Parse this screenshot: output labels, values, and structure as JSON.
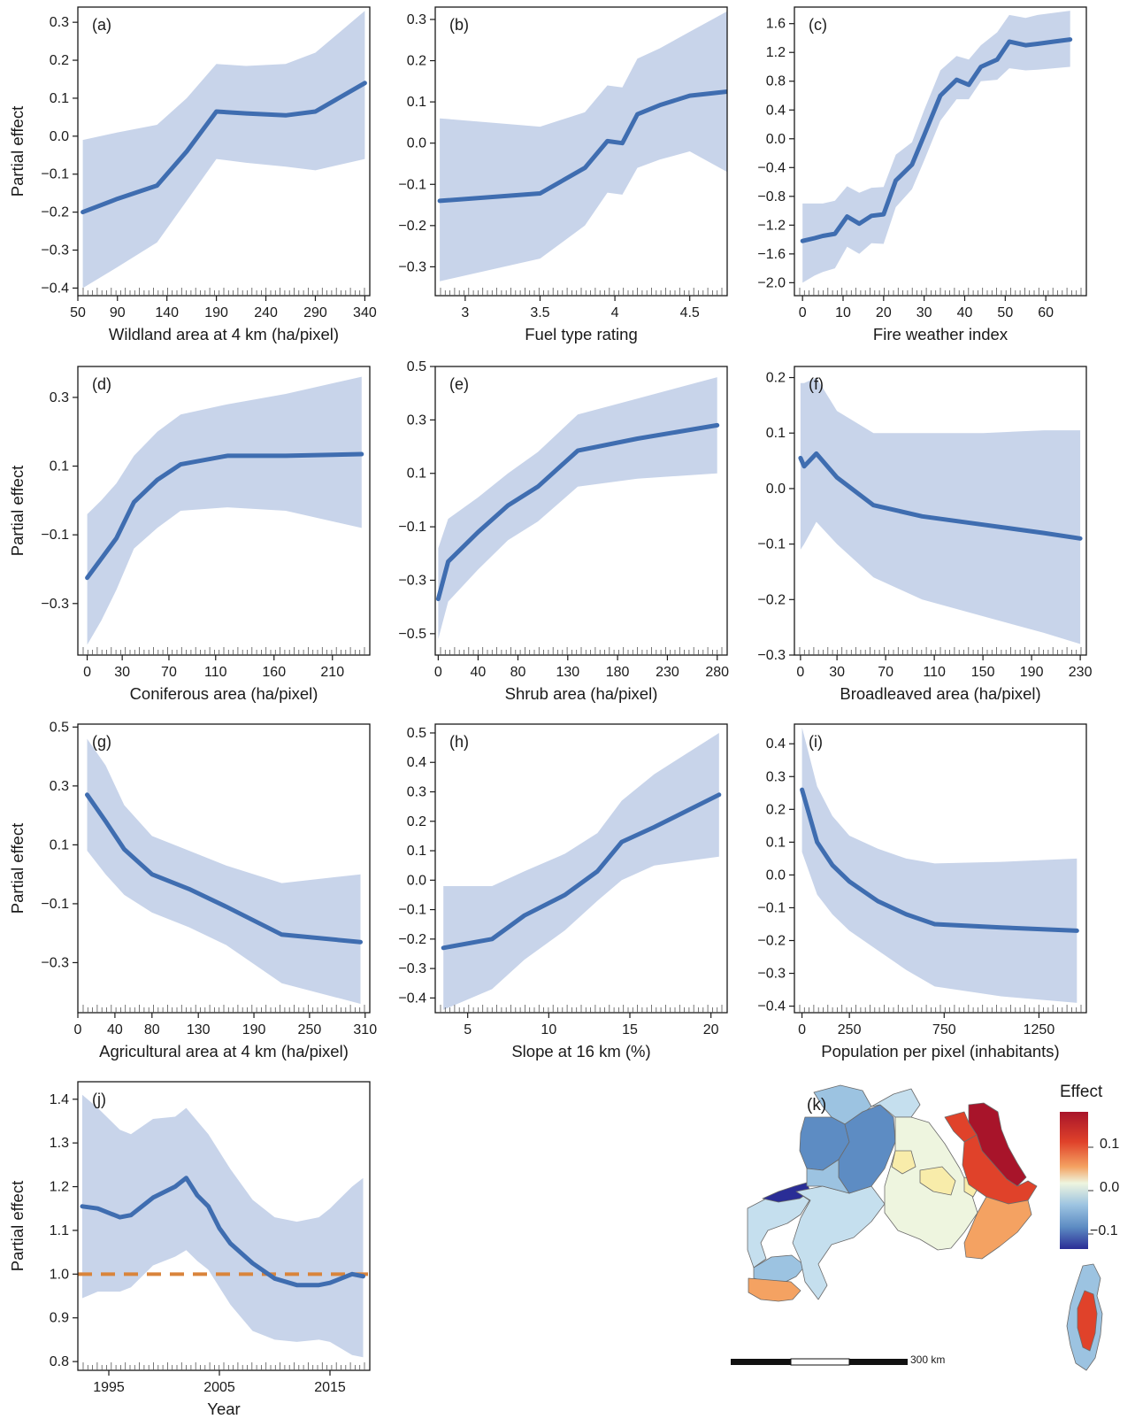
{
  "colors": {
    "band": "#c8d4ea",
    "line": "#3f6db0",
    "reference": "#d9843b",
    "axis": "#1a1a1a"
  },
  "panels": [
    {
      "tag": "(a)",
      "xlabel": "Wildland area at 4 km (ha/pixel)",
      "ylabel": "Partial effect",
      "xlim": [
        50,
        345
      ],
      "ylim": [
        -0.42,
        0.34
      ],
      "xticks": [
        50,
        90,
        140,
        190,
        240,
        290,
        340
      ],
      "xtick_labels": [
        "50",
        "90",
        "140",
        "190",
        "240",
        "290",
        "340"
      ],
      "yticks": [
        -0.4,
        -0.3,
        -0.2,
        -0.1,
        0,
        0.1,
        0.2,
        0.3
      ],
      "ytick_labels": [
        "−0.4",
        "−0.3",
        "−0.2",
        "−0.1",
        "0.0",
        "0.1",
        "0.2",
        "0.3"
      ]
    },
    {
      "tag": "(b)",
      "xlabel": "Fuel type rating",
      "ylabel": "",
      "xlim": [
        2.8,
        4.75
      ],
      "ylim": [
        -0.37,
        0.33
      ],
      "xticks": [
        3,
        3.5,
        4,
        4.5
      ],
      "xtick_labels": [
        "3",
        "3.5",
        "4",
        "4.5"
      ],
      "yticks": [
        -0.3,
        -0.2,
        -0.1,
        0,
        0.1,
        0.2,
        0.3
      ],
      "ytick_labels": [
        "−0.3",
        "−0.2",
        "−0.1",
        "0.0",
        "0.1",
        "0.2",
        "0.3"
      ]
    },
    {
      "tag": "(c)",
      "xlabel": "Fire weather index",
      "ylabel": "",
      "xlim": [
        -2,
        70
      ],
      "ylim": [
        -2.18,
        1.83
      ],
      "xticks": [
        0,
        10,
        20,
        30,
        40,
        50,
        60
      ],
      "xtick_labels": [
        "0",
        "10",
        "20",
        "30",
        "40",
        "50",
        "60"
      ],
      "yticks": [
        -2,
        -1.6,
        -1.2,
        -0.8,
        -0.4,
        0,
        0.4,
        0.8,
        1.2,
        1.6
      ],
      "ytick_labels": [
        "−2.0",
        "−1.6",
        "−1.2",
        "−0.8",
        "−0.4",
        "0.0",
        "0.4",
        "0.8",
        "1.2",
        "1.6"
      ]
    },
    {
      "tag": "(d)",
      "xlabel": "Coniferous area (ha/pixel)",
      "ylabel": "Partial effect",
      "xlim": [
        -8,
        242
      ],
      "ylim": [
        -0.45,
        0.39
      ],
      "xticks": [
        0,
        30,
        70,
        110,
        160,
        210
      ],
      "xtick_labels": [
        "0",
        "30",
        "70",
        "110",
        "160",
        "210"
      ],
      "yticks": [
        -0.3,
        -0.1,
        0.1,
        0.3
      ],
      "ytick_labels": [
        "−0.3",
        "−0.1",
        "0.1",
        "0.3"
      ]
    },
    {
      "tag": "(e)",
      "xlabel": "Shrub area (ha/pixel)",
      "ylabel": "",
      "xlim": [
        -3,
        290
      ],
      "ylim": [
        -0.58,
        0.5
      ],
      "xticks": [
        0,
        40,
        80,
        130,
        180,
        230,
        280
      ],
      "xtick_labels": [
        "0",
        "40",
        "80",
        "130",
        "180",
        "230",
        "280"
      ],
      "yticks": [
        -0.5,
        -0.3,
        -0.1,
        0.1,
        0.3,
        0.5
      ],
      "ytick_labels": [
        "−0.5",
        "−0.3",
        "−0.1",
        "0.1",
        "0.3",
        "0.5"
      ]
    },
    {
      "tag": "(f)",
      "xlabel": "Broadleaved area (ha/pixel)",
      "ylabel": "",
      "xlim": [
        -5,
        235
      ],
      "ylim": [
        -0.3,
        0.22
      ],
      "xticks": [
        0,
        30,
        70,
        110,
        150,
        190,
        230
      ],
      "xtick_labels": [
        "0",
        "30",
        "70",
        "110",
        "150",
        "190",
        "230"
      ],
      "yticks": [
        -0.3,
        -0.2,
        -0.1,
        0,
        0.1,
        0.2
      ],
      "ytick_labels": [
        "−0.3",
        "−0.2",
        "−0.1",
        "0.0",
        "0.1",
        "0.2"
      ]
    },
    {
      "tag": "(g)",
      "xlabel": "Agricultural area at 4 km (ha/pixel)",
      "ylabel": "Partial effect",
      "xlim": [
        0,
        315
      ],
      "ylim": [
        -0.47,
        0.51
      ],
      "xticks": [
        0,
        40,
        80,
        130,
        190,
        250,
        310
      ],
      "xtick_labels": [
        "0",
        "40",
        "80",
        "130",
        "190",
        "250",
        "310"
      ],
      "yticks": [
        -0.3,
        -0.1,
        0.1,
        0.3,
        0.5
      ],
      "ytick_labels": [
        "−0.3",
        "−0.1",
        "0.1",
        "0.3",
        "0.5"
      ]
    },
    {
      "tag": "(h)",
      "xlabel": "Slope at 16 km (%)",
      "ylabel": "",
      "xlim": [
        3,
        21
      ],
      "ylim": [
        -0.45,
        0.53
      ],
      "xticks": [
        5,
        10,
        15,
        20
      ],
      "xtick_labels": [
        "5",
        "10",
        "15",
        "20"
      ],
      "yticks": [
        -0.4,
        -0.3,
        -0.2,
        -0.1,
        0,
        0.1,
        0.2,
        0.3,
        0.4,
        0.5
      ],
      "ytick_labels": [
        "−0.4",
        "−0.3",
        "−0.2",
        "−0.1",
        "0.0",
        "0.1",
        "0.2",
        "0.3",
        "0.4",
        "0.5"
      ]
    },
    {
      "tag": "(i)",
      "xlabel": "Population per pixel (inhabitants)",
      "ylabel": "",
      "xlim": [
        -40,
        1500
      ],
      "ylim": [
        -0.42,
        0.46
      ],
      "xticks": [
        0,
        250,
        750,
        1250
      ],
      "xtick_labels": [
        "0",
        "250",
        "750",
        "1250"
      ],
      "yticks": [
        -0.4,
        -0.3,
        -0.2,
        -0.1,
        0,
        0.1,
        0.2,
        0.3,
        0.4
      ],
      "ytick_labels": [
        "−0.4",
        "−0.3",
        "−0.2",
        "−0.1",
        "0.0",
        "0.1",
        "0.2",
        "0.3",
        "0.4"
      ]
    },
    {
      "tag": "(j)",
      "xlabel": "Year",
      "ylabel": "Partial effect",
      "xlim": [
        1992.2,
        2018.6
      ],
      "ylim": [
        0.78,
        1.44
      ],
      "xticks": [
        1995,
        2005,
        2015
      ],
      "xtick_labels": [
        "1995",
        "2005",
        "2015"
      ],
      "yticks": [
        0.8,
        0.9,
        1.0,
        1.1,
        1.2,
        1.3,
        1.4
      ],
      "ytick_labels": [
        "0.8",
        "0.9",
        "1.0",
        "1.1",
        "1.2",
        "1.3",
        "1.4"
      ],
      "reference_y": 1.0
    }
  ],
  "chart_data": [
    {
      "type": "line",
      "panel": "a",
      "x": [
        55,
        90,
        130,
        160,
        190,
        220,
        260,
        290,
        340
      ],
      "series": [
        {
          "values": [
            -0.2,
            -0.165,
            -0.13,
            -0.04,
            0.065,
            0.06,
            0.055,
            0.065,
            0.14
          ],
          "lower": [
            -0.4,
            -0.345,
            -0.28,
            -0.17,
            -0.06,
            -0.07,
            -0.08,
            -0.09,
            -0.06
          ],
          "upper": [
            -0.01,
            0.01,
            0.03,
            0.1,
            0.19,
            0.185,
            0.19,
            0.22,
            0.33
          ]
        }
      ]
    },
    {
      "type": "line",
      "panel": "b",
      "x": [
        2.83,
        3.5,
        3.8,
        3.95,
        4.05,
        4.15,
        4.3,
        4.5,
        4.75
      ],
      "series": [
        {
          "values": [
            -0.14,
            -0.122,
            -0.06,
            0.005,
            0.0,
            0.07,
            0.092,
            0.115,
            0.125
          ],
          "lower": [
            -0.335,
            -0.28,
            -0.2,
            -0.12,
            -0.125,
            -0.06,
            -0.04,
            -0.02,
            -0.07
          ],
          "upper": [
            0.06,
            0.04,
            0.075,
            0.14,
            0.135,
            0.205,
            0.23,
            0.27,
            0.32
          ]
        }
      ]
    },
    {
      "type": "line",
      "panel": "c",
      "x": [
        0,
        3,
        5,
        8,
        11,
        14,
        17,
        20,
        23,
        27,
        30,
        34,
        38,
        41,
        44,
        48,
        51,
        55,
        58,
        62,
        66
      ],
      "series": [
        {
          "values": [
            -1.42,
            -1.38,
            -1.35,
            -1.32,
            -1.08,
            -1.18,
            -1.07,
            -1.05,
            -0.58,
            -0.36,
            0.05,
            0.6,
            0.82,
            0.75,
            1.0,
            1.1,
            1.35,
            1.3,
            1.32,
            1.35,
            1.38
          ],
          "lower": [
            -2.0,
            -1.9,
            -1.85,
            -1.8,
            -1.5,
            -1.6,
            -1.45,
            -1.46,
            -0.95,
            -0.7,
            -0.3,
            0.25,
            0.55,
            0.55,
            0.8,
            0.82,
            0.98,
            0.95,
            0.96,
            0.98,
            1.0
          ],
          "upper": [
            -0.9,
            -0.9,
            -0.9,
            -0.86,
            -0.66,
            -0.75,
            -0.68,
            -0.67,
            -0.22,
            -0.05,
            0.4,
            0.95,
            1.15,
            1.1,
            1.3,
            1.48,
            1.72,
            1.68,
            1.72,
            1.75,
            1.78
          ]
        }
      ]
    },
    {
      "type": "line",
      "panel": "d",
      "x": [
        0,
        12,
        25,
        40,
        60,
        80,
        120,
        170,
        235
      ],
      "series": [
        {
          "values": [
            -0.225,
            -0.17,
            -0.11,
            -0.005,
            0.06,
            0.105,
            0.13,
            0.13,
            0.135
          ],
          "lower": [
            -0.42,
            -0.35,
            -0.26,
            -0.14,
            -0.08,
            -0.03,
            -0.02,
            -0.03,
            -0.08
          ],
          "upper": [
            -0.04,
            0.0,
            0.05,
            0.13,
            0.2,
            0.25,
            0.28,
            0.31,
            0.36
          ]
        }
      ]
    },
    {
      "type": "line",
      "panel": "e",
      "x": [
        0,
        10,
        40,
        70,
        100,
        140,
        200,
        280
      ],
      "series": [
        {
          "values": [
            -0.37,
            -0.23,
            -0.12,
            -0.02,
            0.05,
            0.185,
            0.23,
            0.28
          ],
          "lower": [
            -0.52,
            -0.38,
            -0.26,
            -0.15,
            -0.08,
            0.05,
            0.08,
            0.1
          ],
          "upper": [
            -0.18,
            -0.07,
            0.01,
            0.1,
            0.18,
            0.32,
            0.38,
            0.46
          ]
        }
      ]
    },
    {
      "type": "line",
      "panel": "f",
      "x": [
        0,
        3,
        13,
        30,
        60,
        100,
        150,
        200,
        230
      ],
      "series": [
        {
          "values": [
            0.055,
            0.04,
            0.063,
            0.02,
            -0.03,
            -0.05,
            -0.065,
            -0.08,
            -0.09
          ],
          "lower": [
            -0.11,
            -0.1,
            -0.06,
            -0.1,
            -0.16,
            -0.2,
            -0.23,
            -0.26,
            -0.28
          ],
          "upper": [
            0.19,
            0.19,
            0.2,
            0.14,
            0.1,
            0.1,
            0.1,
            0.105,
            0.105
          ]
        }
      ]
    },
    {
      "type": "line",
      "panel": "g",
      "x": [
        10,
        30,
        50,
        80,
        120,
        160,
        220,
        305
      ],
      "series": [
        {
          "values": [
            0.27,
            0.18,
            0.085,
            0.0,
            -0.05,
            -0.11,
            -0.205,
            -0.23
          ],
          "lower": [
            0.08,
            0.0,
            -0.07,
            -0.13,
            -0.18,
            -0.24,
            -0.37,
            -0.44
          ],
          "upper": [
            0.46,
            0.37,
            0.235,
            0.13,
            0.08,
            0.03,
            -0.03,
            0.0
          ]
        }
      ]
    },
    {
      "type": "line",
      "panel": "h",
      "x": [
        3.5,
        6.5,
        8.5,
        11,
        13,
        14.5,
        16.5,
        20.5
      ],
      "series": [
        {
          "values": [
            -0.23,
            -0.2,
            -0.12,
            -0.05,
            0.03,
            0.13,
            0.18,
            0.29
          ],
          "lower": [
            -0.44,
            -0.37,
            -0.27,
            -0.17,
            -0.07,
            0.0,
            0.05,
            0.08
          ],
          "upper": [
            -0.02,
            -0.02,
            0.03,
            0.09,
            0.16,
            0.27,
            0.36,
            0.5
          ]
        }
      ]
    },
    {
      "type": "line",
      "panel": "i",
      "x": [
        0,
        80,
        160,
        250,
        400,
        550,
        700,
        1050,
        1450
      ],
      "series": [
        {
          "values": [
            0.26,
            0.1,
            0.03,
            -0.02,
            -0.08,
            -0.12,
            -0.15,
            -0.16,
            -0.17
          ],
          "lower": [
            0.07,
            -0.06,
            -0.12,
            -0.17,
            -0.23,
            -0.29,
            -0.34,
            -0.37,
            -0.39
          ],
          "upper": [
            0.45,
            0.27,
            0.18,
            0.12,
            0.08,
            0.05,
            0.035,
            0.04,
            0.05
          ]
        }
      ]
    },
    {
      "type": "line",
      "panel": "j",
      "x": [
        1992.6,
        1994,
        1996,
        1997,
        1999,
        2001,
        2002,
        2003,
        2004,
        2005,
        2006,
        2008,
        2010,
        2012,
        2014,
        2015,
        2017,
        2018
      ],
      "series": [
        {
          "values": [
            1.155,
            1.15,
            1.13,
            1.135,
            1.175,
            1.2,
            1.22,
            1.18,
            1.155,
            1.105,
            1.07,
            1.025,
            0.99,
            0.975,
            0.975,
            0.98,
            1.0,
            0.995
          ],
          "lower": [
            0.945,
            0.96,
            0.96,
            0.97,
            1.02,
            1.04,
            1.055,
            1.03,
            1.01,
            0.97,
            0.93,
            0.87,
            0.85,
            0.845,
            0.85,
            0.845,
            0.815,
            0.81
          ],
          "upper": [
            1.41,
            1.38,
            1.33,
            1.32,
            1.355,
            1.36,
            1.38,
            1.35,
            1.32,
            1.28,
            1.24,
            1.17,
            1.13,
            1.12,
            1.13,
            1.15,
            1.2,
            1.22
          ]
        }
      ]
    }
  ],
  "map": {
    "tag": "(k)",
    "legend_title": "Effect",
    "legend_labels": [
      "0.1",
      "0.0",
      "−0.1"
    ],
    "scale_label": "300 km",
    "colors": {
      "strong_pos": "#a8142a",
      "pos": "#e0422a",
      "mid_pos": "#f4a262",
      "neutral": "#eef5df",
      "pale_yellow": "#f8ecaa",
      "light_neg": "#c5dfee",
      "neg": "#9cc3e1",
      "mid_neg": "#5d8cc3",
      "strong_neg": "#2a2d96"
    }
  }
}
